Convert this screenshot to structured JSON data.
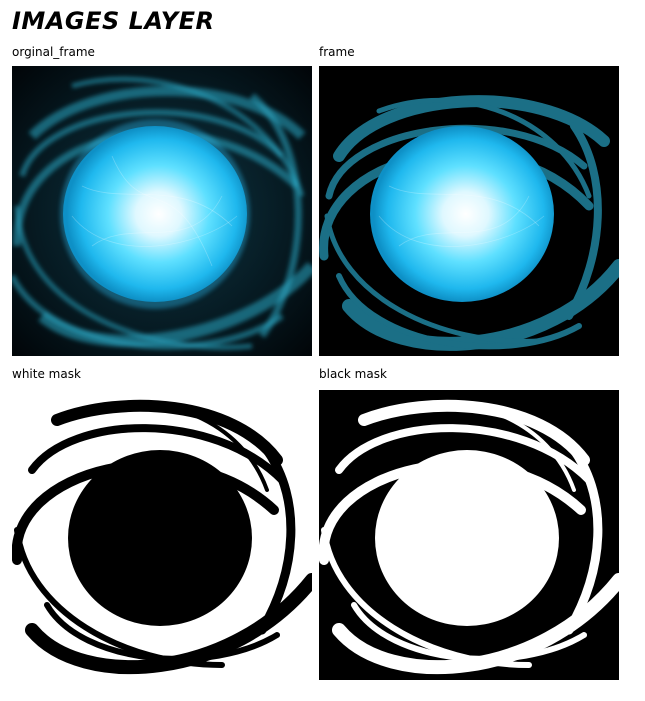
{
  "page": {
    "title": "IMAGES LAYER"
  },
  "panels": [
    {
      "label": "orginal_frame"
    },
    {
      "label": "frame"
    },
    {
      "label": "white mask"
    },
    {
      "label": "black mask"
    }
  ],
  "colors": {
    "glow": "#2fd0ff",
    "glow_core": "#ffffff",
    "streak": "#1a6a80",
    "background_dark": "#000000",
    "mask_white": "#ffffff"
  }
}
